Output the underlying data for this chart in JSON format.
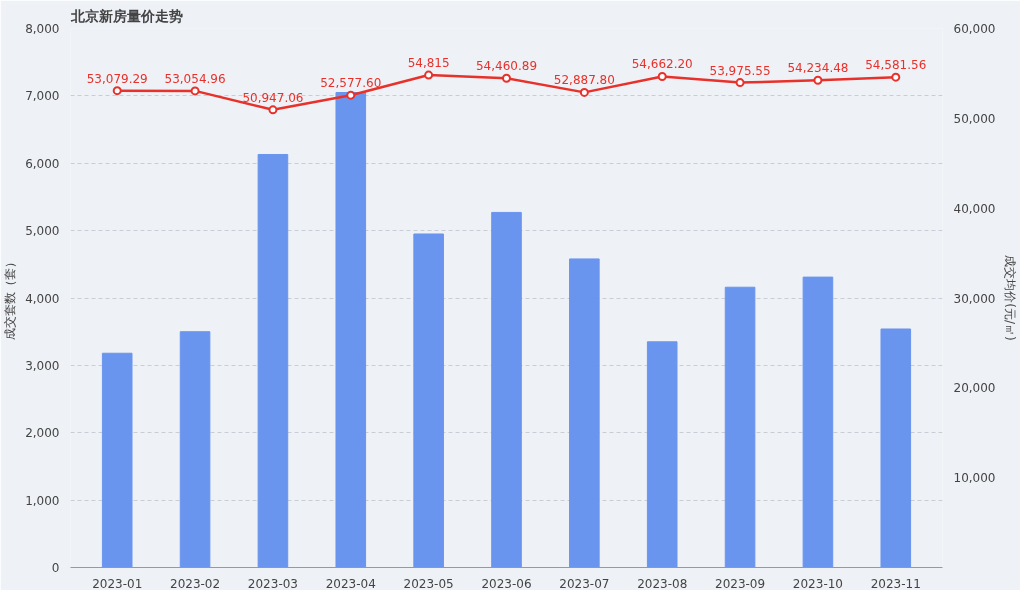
{
  "chart_data": {
    "type": "bar",
    "title": "北京新房量价走势",
    "ylabel": "成交套数（套）",
    "y2label": "成交均价(元/㎡)",
    "categories": [
      "2023-01",
      "2023-02",
      "2023-03",
      "2023-04",
      "2023-05",
      "2023-06",
      "2023-07",
      "2023-08",
      "2023-09",
      "2023-10",
      "2023-11"
    ],
    "series": [
      {
        "color": "#6a95ee",
        "values": [
          3180,
          3500,
          6130,
          7050,
          4950,
          5270,
          4580,
          3350,
          4160,
          4310,
          3540
        ]
      },
      {
        "type": "line",
        "axis": "y2",
        "color": "#e8312a",
        "values": [
          53079.29,
          53054.96,
          50947.06,
          52577.6,
          54815,
          54460.89,
          52887.8,
          54662.2,
          53975.55,
          54234.48,
          54581.56
        ],
        "value_labels": [
          "53,079.29",
          "53,054.96",
          "50,947.06",
          "52,577.60",
          "54,815",
          "54,460.89",
          "52,887.80",
          "54,662.20",
          "53,975.55",
          "54,234.48",
          "54,581.56"
        ]
      }
    ],
    "ylim": [
      0,
      8000
    ],
    "yticks": [
      {
        "value": 0,
        "label": "0"
      },
      {
        "value": 1000,
        "label": "1,000"
      },
      {
        "value": 2000,
        "label": "2,000"
      },
      {
        "value": 3000,
        "label": "3,000"
      },
      {
        "value": 4000,
        "label": "4,000"
      },
      {
        "value": 5000,
        "label": "5,000"
      },
      {
        "value": 6000,
        "label": "6,000"
      },
      {
        "value": 7000,
        "label": "7,000"
      },
      {
        "value": 8000,
        "label": "8,000"
      }
    ],
    "y2lim": [
      0,
      60000
    ],
    "y2ticks": [
      {
        "value": 10000,
        "label": "10,000"
      },
      {
        "value": 20000,
        "label": "20,000"
      },
      {
        "value": 30000,
        "label": "30,000"
      },
      {
        "value": 40000,
        "label": "40,000"
      },
      {
        "value": 50000,
        "label": "50,000"
      },
      {
        "value": 60000,
        "label": "60,000"
      }
    ],
    "grid": "y",
    "marker": "circle",
    "line_style": "solid"
  }
}
